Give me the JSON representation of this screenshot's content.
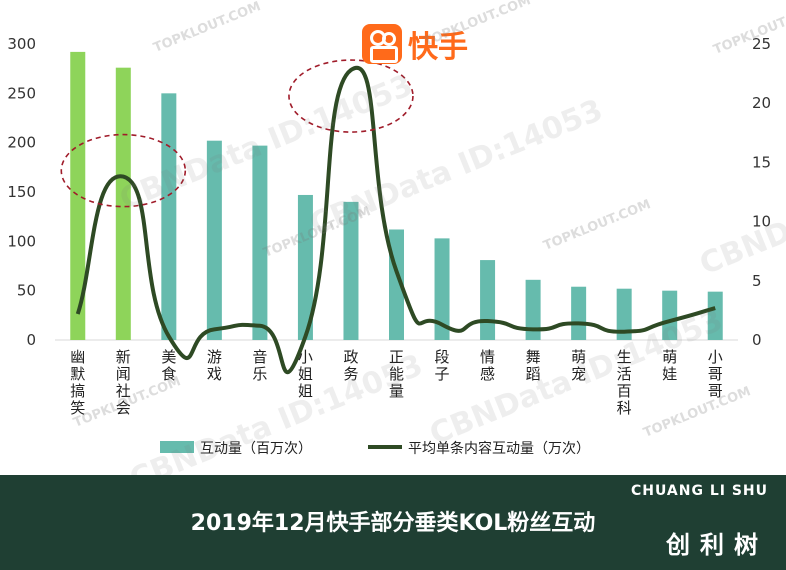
{
  "logo": {
    "text": "快手"
  },
  "chart_data": {
    "type": "bar",
    "title": "",
    "categories": [
      "幽默搞笑",
      "新闻社会",
      "美食",
      "游戏",
      "音乐",
      "小姐姐",
      "政务",
      "正能量",
      "段子",
      "情感",
      "舞蹈",
      "萌宠",
      "生活百科",
      "萌娃",
      "小哥哥"
    ],
    "series": [
      {
        "name": "互动量（百万次）",
        "type": "bar",
        "axis": "left",
        "values": [
          292,
          276,
          250,
          202,
          197,
          147,
          140,
          112,
          103,
          81,
          61,
          54,
          52,
          50,
          49
        ]
      },
      {
        "name": "平均单条内容互动量（万次）",
        "type": "line",
        "axis": "right",
        "values": [
          2.2,
          13.8,
          0.3,
          0.9,
          1.2,
          0.3,
          22.8,
          5.8,
          1.3,
          1.6,
          0.9,
          1.4,
          0.7,
          1.6,
          2.7
        ]
      }
    ],
    "highlight_colors": [
      "#8ed45a",
      "#8ed45a"
    ],
    "bar_color": "#66bbad",
    "line_color": "#2e4a24",
    "ylim_left": [
      0,
      300
    ],
    "yticks_left": [
      0,
      50,
      100,
      150,
      200,
      250,
      300
    ],
    "ylim_right": [
      0,
      25
    ],
    "yticks_right": [
      0,
      5,
      10,
      15,
      20,
      25
    ],
    "annotations": [
      "新闻社会 peak circled",
      "政务 peak circled"
    ],
    "legend_position": "bottom"
  },
  "watermarks": [
    "TOPKLOUT.COM",
    "CBNData ID:14053"
  ],
  "footer": {
    "title": "2019年12月快手部分垂类KOL粉丝互动",
    "brand_en": "CHUANG LI SHU",
    "brand_cn": "创利树"
  }
}
